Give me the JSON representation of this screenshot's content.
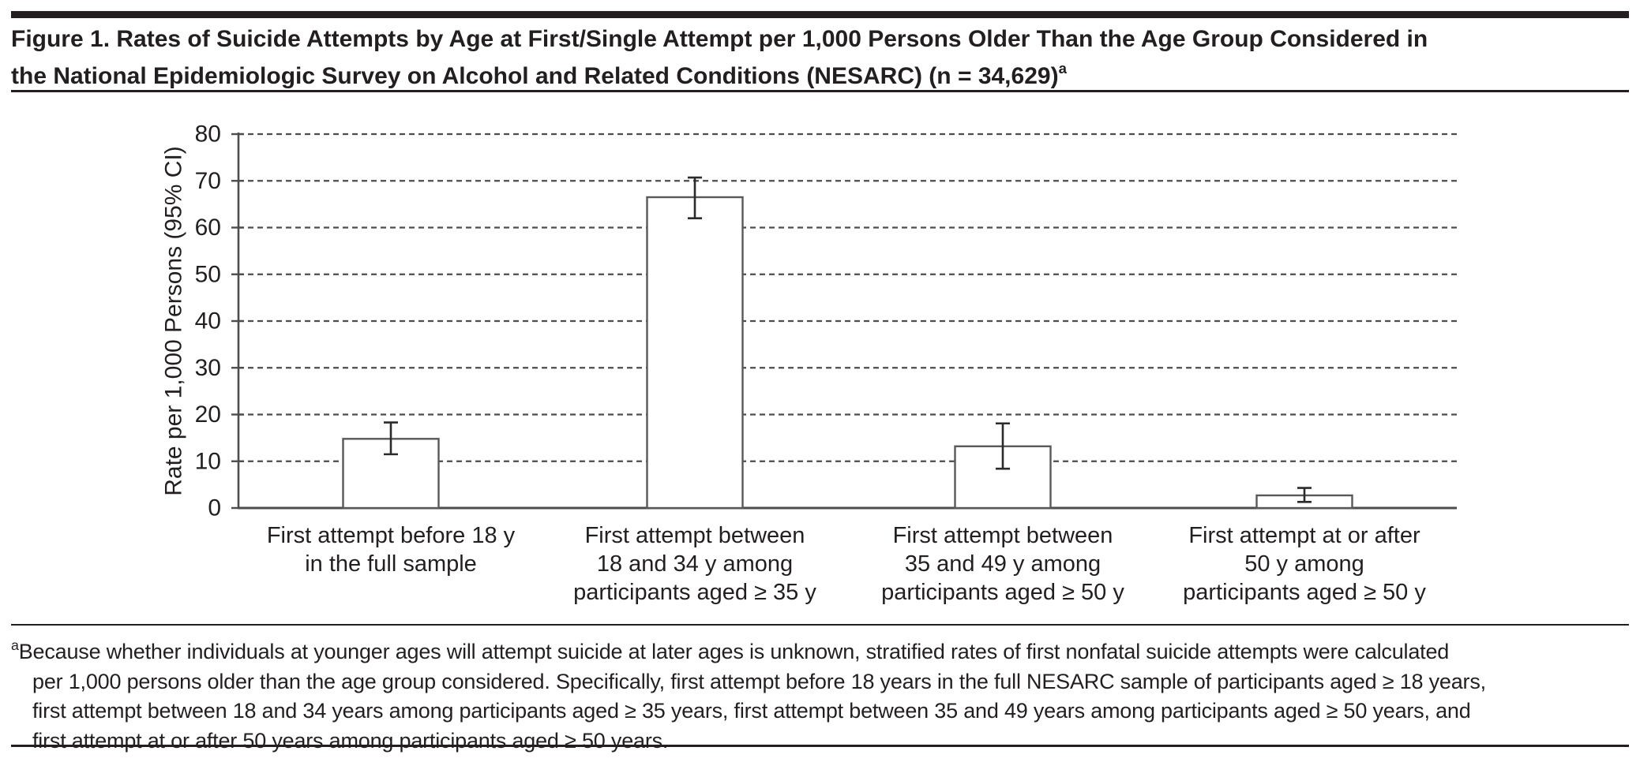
{
  "figure": {
    "title_main": "Figure 1. Rates of Suicide Attempts by Age at First/Single Attempt per 1,000 Persons Older Than the Age Group Considered in\nthe National Epidemiologic Survey on Alcohol and Related Conditions (NESARC) (n = 34,629)",
    "title_superscript": "a"
  },
  "chart_data": {
    "type": "bar",
    "ylabel": "Rate per 1,000 Persons (95% CI)",
    "xlabel": "",
    "ylim": [
      0,
      80
    ],
    "yticks": [
      0,
      10,
      20,
      30,
      40,
      50,
      60,
      70,
      80
    ],
    "grid": "horizontal dashed gridlines at every 10",
    "legend": "none",
    "categories": [
      "First attempt before 18 y\nin the full sample",
      "First attempt between\n18 and 34 y among\nparticipants aged ≥ 35 y",
      "First attempt between\n35 and 49 y among\nparticipants aged ≥ 50 y",
      "First attempt at or after\n50 y among\nparticipants aged ≥ 50 y"
    ],
    "values": [
      14.8,
      66.5,
      13.2,
      2.7
    ],
    "ci_low": [
      11.5,
      62.0,
      8.4,
      1.3
    ],
    "ci_high": [
      18.3,
      70.7,
      18.1,
      4.3
    ]
  },
  "footnote": {
    "marker": "a",
    "text": "Because whether individuals at younger ages will attempt suicide at later ages is unknown, stratified rates of first nonfatal suicide attempts were calculated\nper 1,000 persons older than the age group considered. Specifically, first attempt before 18 years in the full NESARC sample of participants aged ≥ 18 years,\nfirst attempt between 18 and 34 years among participants aged ≥ 35 years, first attempt between 35 and 49 years among participants aged ≥ 50 years, and\nfirst attempt at or after 50 years among participants aged ≥ 50 years."
  },
  "colors": {
    "background": "#ffffff",
    "text": "#231f20",
    "rule": "#231f20",
    "axis": "#4d4d4f",
    "grid": "#4d4d4f",
    "bar_fill": "#ffffff",
    "bar_stroke": "#58595b",
    "error_bar": "#2d2a2b"
  }
}
